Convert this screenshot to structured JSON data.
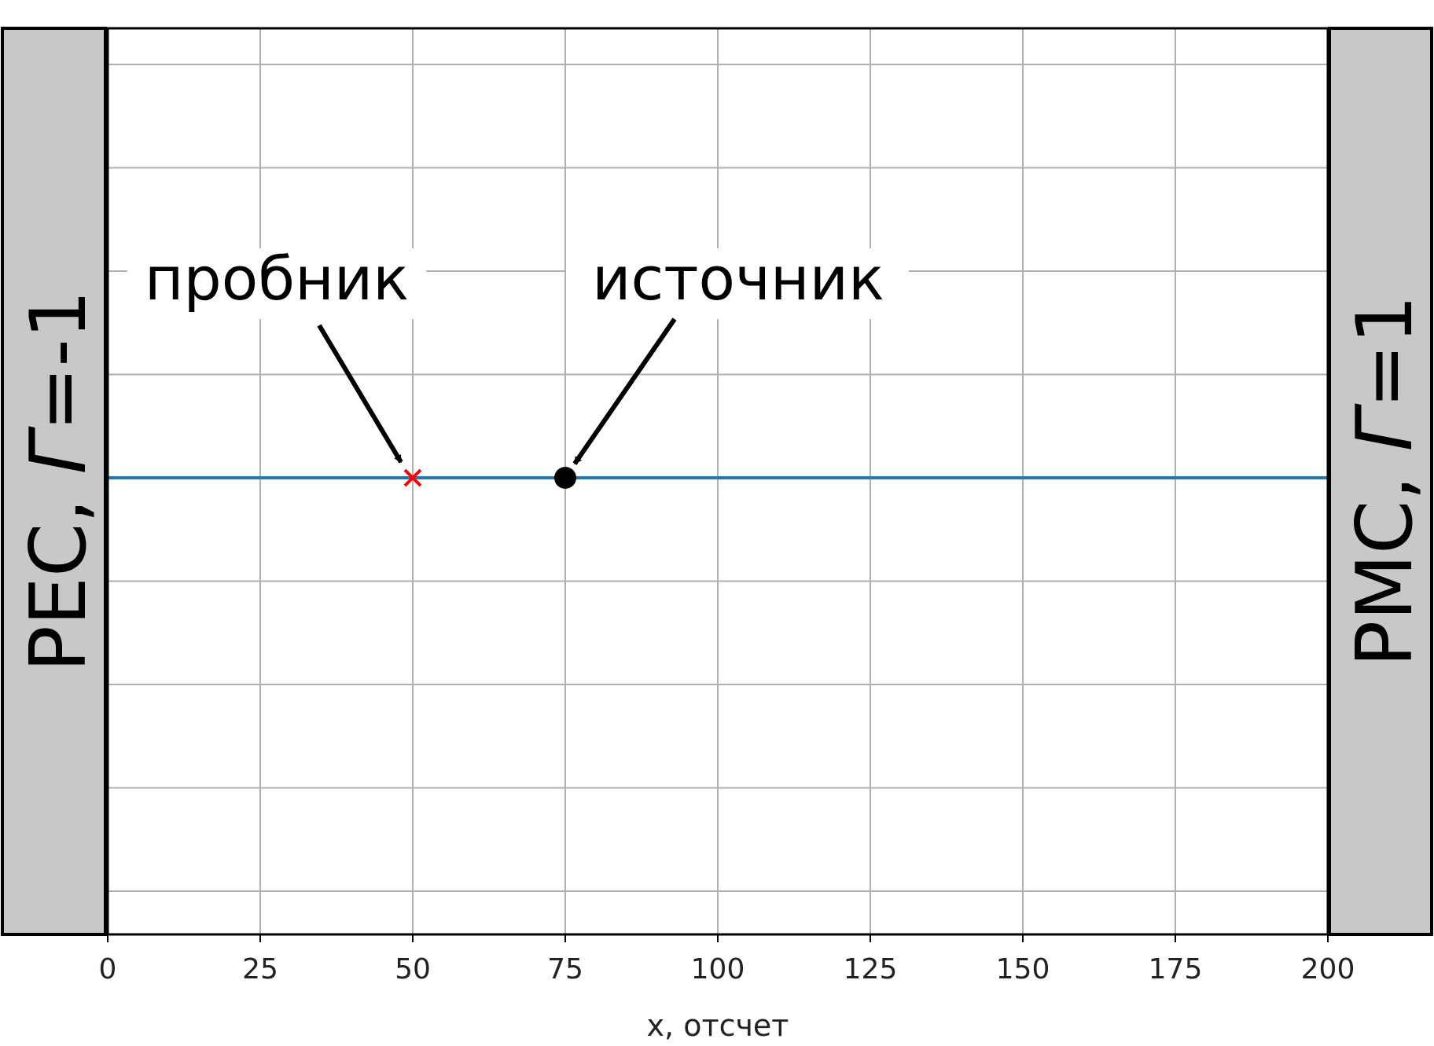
{
  "chart_data": {
    "type": "line",
    "title": "",
    "xlabel": "x, отсчет",
    "ylabel": "",
    "xlim": [
      0,
      200
    ],
    "x_ticks": [
      0,
      25,
      50,
      75,
      100,
      125,
      150,
      175,
      200
    ],
    "x_tick_labels": [
      "0",
      "25",
      "50",
      "75",
      "100",
      "125",
      "150",
      "175",
      "200"
    ],
    "y_gridline_count": 9,
    "grid": true,
    "series": [
      {
        "x": [
          0,
          200
        ],
        "y": [
          0,
          0
        ],
        "color": "#1f77b4"
      }
    ],
    "markers": [
      {
        "label": "пробник",
        "x": 50,
        "y": 0,
        "symbol": "cross",
        "color": "#ff0000"
      },
      {
        "label": "источник",
        "x": 75,
        "y": 0,
        "symbol": "dot",
        "color": "#000000"
      }
    ],
    "boundaries": [
      {
        "side": "left",
        "name": "PEC, ",
        "gamma_symbol": "Γ",
        "gamma_value": "=-1",
        "fill": "#c8c8c8"
      },
      {
        "side": "right",
        "name": "PMC, ",
        "gamma_symbol": "Γ",
        "gamma_value": "=1",
        "fill": "#c8c8c8"
      }
    ]
  }
}
